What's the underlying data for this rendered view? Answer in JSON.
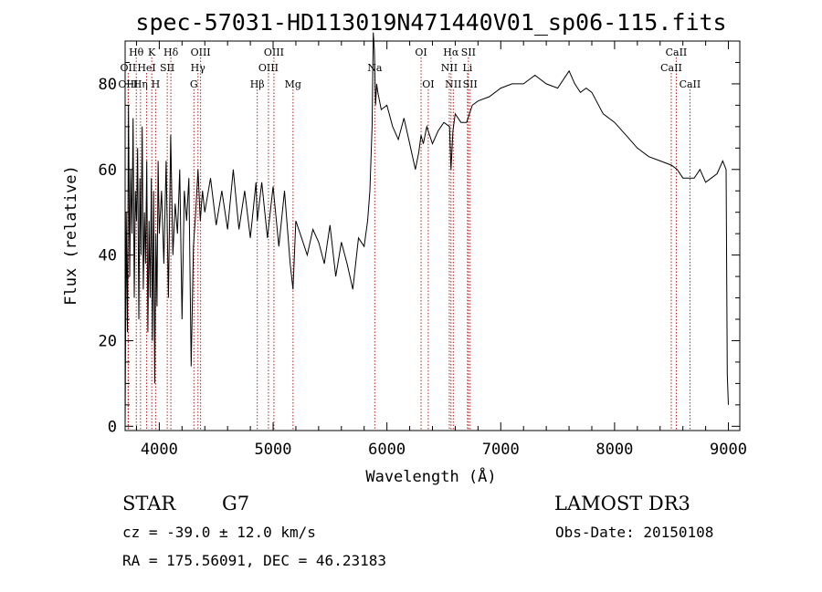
{
  "chart_data": {
    "type": "line",
    "title": "spec-57031-HD113019N471440V01_sp06-115.fits",
    "xlabel": "Wavelength (Å)",
    "ylabel": "Flux (relative)",
    "xlim": [
      3700,
      9100
    ],
    "ylim": [
      -1,
      90
    ],
    "xticks": [
      4000,
      5000,
      6000,
      7000,
      8000,
      9000
    ],
    "yticks": [
      0,
      20,
      40,
      60,
      80
    ],
    "grid": false,
    "series": [
      {
        "x": [
          3700,
          3710,
          3720,
          3730,
          3740,
          3750,
          3760,
          3770,
          3780,
          3790,
          3800,
          3810,
          3820,
          3830,
          3840,
          3850,
          3860,
          3870,
          3880,
          3890,
          3900,
          3910,
          3920,
          3930,
          3940,
          3950,
          3960,
          3970,
          3980,
          3990,
          4000,
          4020,
          4040,
          4060,
          4080,
          4100,
          4120,
          4140,
          4160,
          4180,
          4200,
          4220,
          4240,
          4260,
          4280,
          4300,
          4320,
          4340,
          4360,
          4380,
          4400,
          4450,
          4500,
          4550,
          4600,
          4650,
          4700,
          4750,
          4800,
          4850,
          4861,
          4900,
          4950,
          5000,
          5050,
          5100,
          5150,
          5175,
          5200,
          5250,
          5300,
          5350,
          5400,
          5450,
          5500,
          5550,
          5600,
          5650,
          5700,
          5750,
          5800,
          5830,
          5850,
          5870,
          5880,
          5890,
          5900,
          5910,
          5920,
          5950,
          6000,
          6050,
          6100,
          6150,
          6200,
          6250,
          6280,
          6300,
          6320,
          6350,
          6400,
          6450,
          6500,
          6550,
          6563,
          6580,
          6600,
          6650,
          6700,
          6750,
          6800,
          6900,
          7000,
          7100,
          7200,
          7300,
          7400,
          7500,
          7600,
          7650,
          7700,
          7750,
          7800,
          7900,
          8000,
          8100,
          8200,
          8300,
          8400,
          8500,
          8550,
          8600,
          8650,
          8700,
          8750,
          8800,
          8850,
          8900,
          8950,
          8980,
          8990,
          9000
        ],
        "values": [
          0,
          50,
          22,
          75,
          35,
          60,
          45,
          72,
          30,
          55,
          48,
          65,
          25,
          58,
          40,
          70,
          32,
          50,
          38,
          62,
          22,
          48,
          30,
          58,
          20,
          55,
          10,
          45,
          28,
          62,
          45,
          55,
          38,
          62,
          30,
          68,
          40,
          52,
          45,
          60,
          25,
          55,
          48,
          58,
          14,
          42,
          50,
          60,
          48,
          55,
          50,
          58,
          47,
          55,
          46,
          60,
          46,
          55,
          44,
          57,
          48,
          57,
          44,
          56,
          42,
          55,
          38,
          32,
          48,
          44,
          40,
          46,
          43,
          38,
          47,
          35,
          43,
          38,
          32,
          44,
          42,
          48,
          55,
          70,
          92,
          88,
          75,
          80,
          78,
          74,
          75,
          70,
          67,
          72,
          66,
          60,
          64,
          68,
          66,
          70,
          66,
          69,
          71,
          70,
          60,
          69,
          73,
          71,
          71,
          75,
          76,
          77,
          79,
          80,
          80,
          82,
          80,
          79,
          83,
          80,
          78,
          79,
          78,
          73,
          71,
          68,
          65,
          63,
          62,
          61,
          60,
          58,
          58,
          58,
          60,
          57,
          58,
          59,
          62,
          60,
          12,
          5
        ]
      }
    ],
    "line_markers": [
      {
        "label": "Hθ",
        "x": 3798,
        "row": 1
      },
      {
        "label": "OII",
        "x": 3727,
        "row": 2
      },
      {
        "label": "OIII",
        "x": 3727,
        "row": 3
      },
      {
        "label": "K",
        "x": 3934,
        "row": 1
      },
      {
        "label": "HeI",
        "x": 3889,
        "row": 2
      },
      {
        "label": "Hη",
        "x": 3835,
        "row": 3
      },
      {
        "label": "SII",
        "x": 4070,
        "row": 2
      },
      {
        "label": "H",
        "x": 3968,
        "row": 3
      },
      {
        "label": "Hδ",
        "x": 4102,
        "row": 1
      },
      {
        "label": "OIII",
        "x": 4363,
        "row": 1
      },
      {
        "label": "Hγ",
        "x": 4340,
        "row": 2
      },
      {
        "label": "G",
        "x": 4304,
        "row": 3
      },
      {
        "label": "OIII",
        "x": 5007,
        "row": 1
      },
      {
        "label": "OIII",
        "x": 4959,
        "row": 2
      },
      {
        "label": "Hβ",
        "x": 4861,
        "row": 3
      },
      {
        "label": "Mg",
        "x": 5175,
        "row": 3
      },
      {
        "label": "Na",
        "x": 5893,
        "row": 2
      },
      {
        "label": "OI",
        "x": 6300,
        "row": 1
      },
      {
        "label": "OI",
        "x": 6363,
        "row": 3
      },
      {
        "label": "Hα",
        "x": 6563,
        "row": 1
      },
      {
        "label": "NII",
        "x": 6548,
        "row": 2
      },
      {
        "label": "NII",
        "x": 6583,
        "row": 3
      },
      {
        "label": "SII",
        "x": 6716,
        "row": 1
      },
      {
        "label": "Li",
        "x": 6708,
        "row": 2
      },
      {
        "label": "SII",
        "x": 6731,
        "row": 3
      },
      {
        "label": "CaII",
        "x": 8542,
        "row": 1
      },
      {
        "label": "CaII",
        "x": 8498,
        "row": 2
      },
      {
        "label": "CaII",
        "x": 8662,
        "row": 3
      }
    ]
  },
  "footer": {
    "object_class": "STAR",
    "subclass": "G7",
    "survey": "LAMOST DR3",
    "cz": "cz = -39.0 ± 12.0 km/s",
    "obs_date": "Obs-Date: 20150108",
    "coords": "RA = 175.56091, DEC =  46.23183"
  }
}
